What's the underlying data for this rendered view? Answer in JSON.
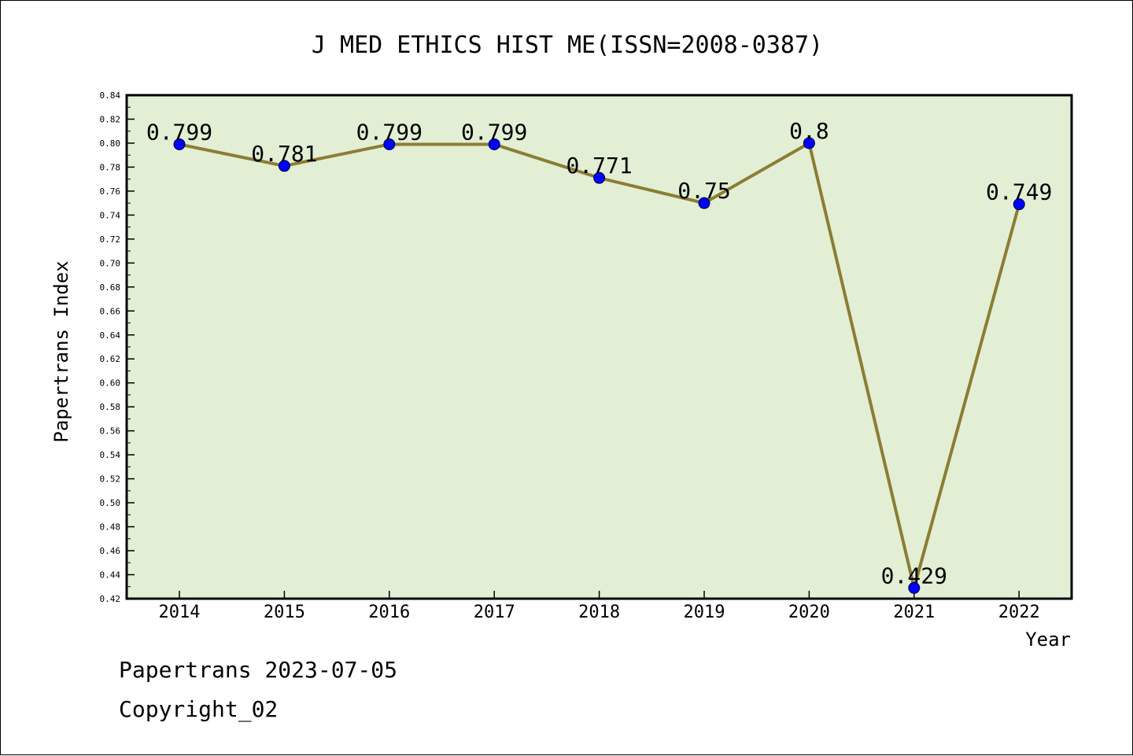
{
  "chart_data": {
    "type": "line",
    "title": "J MED ETHICS HIST ME(ISSN=2008-0387)",
    "xlabel": "Year",
    "ylabel": "Papertrans Index",
    "ylim": [
      0.42,
      0.84
    ],
    "y_ticks": [
      "0.42",
      "0.44",
      "0.46",
      "0.48",
      "0.50",
      "0.52",
      "0.54",
      "0.56",
      "0.58",
      "0.60",
      "0.62",
      "0.64",
      "0.66",
      "0.68",
      "0.70",
      "0.72",
      "0.74",
      "0.76",
      "0.78",
      "0.80",
      "0.82",
      "0.84"
    ],
    "categories": [
      "2014",
      "2015",
      "2016",
      "2017",
      "2018",
      "2019",
      "2020",
      "2021",
      "2022"
    ],
    "values": [
      0.799,
      0.781,
      0.799,
      0.799,
      0.771,
      0.75,
      0.8,
      0.429,
      0.749
    ],
    "data_labels": [
      "0.799",
      "0.781",
      "0.799",
      "0.799",
      "0.771",
      "0.75",
      "0.8",
      "0.429",
      "0.749"
    ],
    "grid": false,
    "colors": {
      "plot_background": "#e2efd4",
      "line": "#8b7d35",
      "marker": "#0000ff"
    }
  },
  "footer": {
    "line1": "Papertrans 2023-07-05",
    "line2": "Copyright_02"
  }
}
